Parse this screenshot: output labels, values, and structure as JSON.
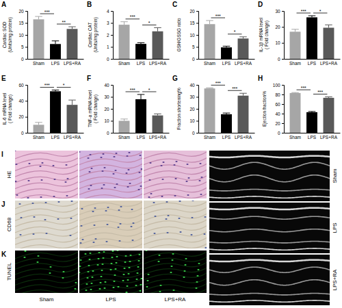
{
  "chart_data": [
    {
      "type": "bar",
      "title": "A",
      "y_label": [
        "Cardiac SOD",
        "(Units/mg protein)"
      ],
      "categories": [
        "Sham",
        "LPS",
        "LPS+RA"
      ],
      "values": [
        16.5,
        6.2,
        12.5
      ],
      "errors": [
        1.2,
        1.3,
        0.9
      ],
      "colors": [
        "#a6a6a6",
        "#000000",
        "#595959"
      ],
      "ylim": [
        0,
        20
      ],
      "yticks": [
        0,
        5,
        10,
        15,
        20
      ],
      "annotations": [
        {
          "categories": [
            "Sham",
            "LPS"
          ],
          "text": "***"
        },
        {
          "categories": [
            "LPS",
            "LPS+RA"
          ],
          "text": "**"
        }
      ]
    },
    {
      "type": "bar",
      "title": "B",
      "y_label": [
        "Cardiac CAT",
        "(Units/mg protein)"
      ],
      "categories": [
        "Sham",
        "LPS",
        "LPS+RA"
      ],
      "values": [
        2.85,
        1.25,
        2.3
      ],
      "errors": [
        0.25,
        0.1,
        0.3
      ],
      "colors": [
        "#a6a6a6",
        "#000000",
        "#595959"
      ],
      "ylim": [
        0,
        4
      ],
      "yticks": [
        0,
        1,
        2,
        3,
        4
      ],
      "annotations": [
        {
          "categories": [
            "Sham",
            "LPS"
          ],
          "text": "***"
        },
        {
          "categories": [
            "LPS",
            "LPS+RA"
          ],
          "text": "*"
        }
      ]
    },
    {
      "type": "bar",
      "title": "C",
      "y_label": [
        "GSH/GSSG ratio"
      ],
      "categories": [
        "Sham",
        "LPS",
        "LPS+RA"
      ],
      "values": [
        14.5,
        4.8,
        8.5
      ],
      "errors": [
        1.5,
        0.5,
        0.7
      ],
      "colors": [
        "#a6a6a6",
        "#000000",
        "#595959"
      ],
      "ylim": [
        0,
        20
      ],
      "yticks": [
        0,
        5,
        10,
        15,
        20
      ],
      "annotations": [
        {
          "categories": [
            "Sham",
            "LPS"
          ],
          "text": "***"
        },
        {
          "categories": [
            "LPS",
            "LPS+RA"
          ],
          "text": "*"
        }
      ]
    },
    {
      "type": "bar",
      "title": "D",
      "y_label": [
        "IL-1β mRNA level",
        "( Fold change)"
      ],
      "categories": [
        "Sham",
        "LPS",
        "LPS+RA"
      ],
      "values": [
        17,
        26,
        19.5
      ],
      "errors": [
        1.5,
        1,
        1.8
      ],
      "colors": [
        "#a6a6a6",
        "#000000",
        "#595959"
      ],
      "ylim": [
        0,
        30
      ],
      "yticks": [
        0,
        10,
        20,
        30
      ],
      "annotations": [
        {
          "categories": [
            "Sham",
            "LPS"
          ],
          "text": "***"
        },
        {
          "categories": [
            "LPS",
            "LPS+RA"
          ],
          "text": "*"
        }
      ]
    },
    {
      "type": "bar",
      "title": "E",
      "y_label": [
        "IL-6 mRNA level",
        "( Fold change)"
      ],
      "categories": [
        "Sham",
        "LPS",
        "LPS+RA"
      ],
      "values": [
        10,
        52,
        35
      ],
      "errors": [
        3,
        1.5,
        6
      ],
      "colors": [
        "#a6a6a6",
        "#000000",
        "#595959"
      ],
      "ylim": [
        0,
        60
      ],
      "yticks": [
        0,
        20,
        40,
        60
      ],
      "annotations": [
        {
          "categories": [
            "Sham",
            "LPS"
          ],
          "text": "***"
        },
        {
          "categories": [
            "LPS",
            "LPS+RA"
          ],
          "text": "*"
        }
      ]
    },
    {
      "type": "bar",
      "title": "F",
      "y_label": [
        "TNF-a mRNA level",
        "( Fold change)"
      ],
      "categories": [
        "Sham",
        "LPS",
        "LPS+RA"
      ],
      "values": [
        10,
        28,
        14.5
      ],
      "errors": [
        1.5,
        4,
        1.3
      ],
      "colors": [
        "#a6a6a6",
        "#000000",
        "#595959"
      ],
      "ylim": [
        0,
        40
      ],
      "yticks": [
        0,
        10,
        20,
        30,
        40
      ],
      "annotations": [
        {
          "categories": [
            "Sham",
            "LPS"
          ],
          "text": "***"
        },
        {
          "categories": [
            "LPS",
            "LPS+RA"
          ],
          "text": "*"
        }
      ]
    },
    {
      "type": "bar",
      "title": "G",
      "y_label": [
        "Fraction shortening%"
      ],
      "categories": [
        "Sham",
        "LPS",
        "LPS+RA"
      ],
      "values": [
        37,
        15.5,
        31
      ],
      "errors": [
        0.5,
        1,
        2
      ],
      "colors": [
        "#a6a6a6",
        "#000000",
        "#595959"
      ],
      "ylim": [
        0,
        40
      ],
      "yticks": [
        0,
        10,
        20,
        30,
        40
      ],
      "annotations": [
        {
          "categories": [
            "Sham",
            "LPS"
          ],
          "text": "***"
        },
        {
          "categories": [
            "LPS",
            "LPS+RA"
          ],
          "text": "***"
        }
      ]
    },
    {
      "type": "bar",
      "title": "H",
      "y_label": [
        "Ejection fraction%"
      ],
      "categories": [
        "Sham",
        "LPS",
        "LPS+RA"
      ],
      "values": [
        83,
        43,
        73
      ],
      "errors": [
        1,
        1.5,
        2
      ],
      "colors": [
        "#a6a6a6",
        "#000000",
        "#595959"
      ],
      "ylim": [
        0,
        100
      ],
      "yticks": [
        0,
        20,
        40,
        60,
        80,
        100
      ],
      "annotations": [
        {
          "categories": [
            "Sham",
            "LPS"
          ],
          "text": "***"
        },
        {
          "categories": [
            "LPS",
            "LPS+RA"
          ],
          "text": "***"
        }
      ]
    }
  ],
  "image_panels": {
    "rows": [
      {
        "letter": "I",
        "label": "HE"
      },
      {
        "letter": "J",
        "label": "CD68"
      },
      {
        "letter": "K",
        "label": "TUNEL"
      }
    ],
    "columns": [
      "Sham",
      "LPS",
      "LPS+RA"
    ],
    "echo_labels": [
      "Sham",
      "LPS",
      "LPS+RA"
    ]
  }
}
